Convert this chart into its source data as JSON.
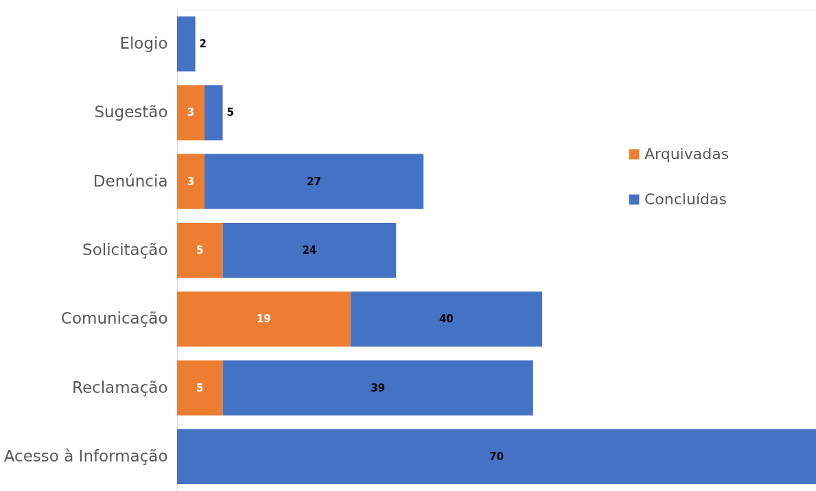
{
  "chart_data": {
    "type": "bar",
    "orientation": "horizontal",
    "stacked": true,
    "categories": [
      "Elogio",
      "Sugestão",
      "Denúncia",
      "Solicitação",
      "Comunicação",
      "Reclamação",
      "Acesso à Informação"
    ],
    "series": [
      {
        "name": "Arquivadas",
        "color": "#ed7d31",
        "values": [
          null,
          3,
          3,
          5,
          19,
          5,
          null
        ],
        "value_labels": [
          null,
          "3",
          "3",
          "5",
          "19",
          "5",
          null
        ]
      },
      {
        "name": "Concluídas",
        "color": "#4472c4",
        "values": [
          2,
          2,
          24,
          19,
          21,
          34,
          70
        ]
      }
    ],
    "totals": [
      "2",
      "5",
      "27",
      "24",
      "40",
      "39",
      "70"
    ],
    "legend": "right",
    "grid": false
  }
}
